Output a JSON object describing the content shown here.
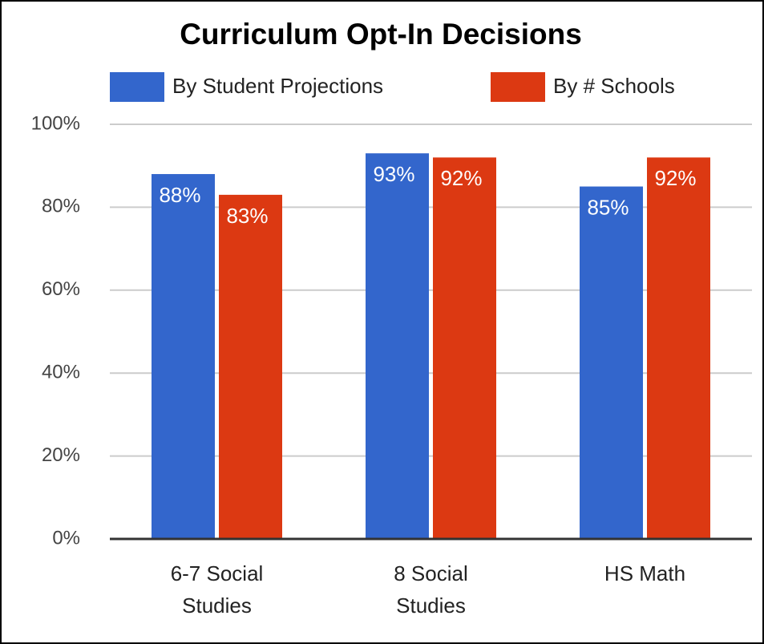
{
  "chart_data": {
    "type": "bar",
    "title": "Curriculum Opt-In Decisions",
    "categories": [
      "6-7 Social Studies",
      "8 Social Studies",
      "HS Math"
    ],
    "series": [
      {
        "name": "By Student Projections",
        "color": "#3366cc",
        "values": [
          88,
          93,
          85
        ],
        "value_labels": [
          "88%",
          "93%",
          "85%"
        ]
      },
      {
        "name": "By # Schools",
        "color": "#dc3912",
        "values": [
          83,
          92,
          92
        ],
        "value_labels": [
          "83%",
          "92%",
          "92%"
        ]
      }
    ],
    "ylim": [
      0,
      100
    ],
    "yticks": [
      {
        "value": 0,
        "label": "0%"
      },
      {
        "value": 20,
        "label": "20%"
      },
      {
        "value": 40,
        "label": "40%"
      },
      {
        "value": 60,
        "label": "60%"
      },
      {
        "value": 80,
        "label": "80%"
      },
      {
        "value": 100,
        "label": "100%"
      }
    ],
    "grid": true,
    "legend": "top"
  }
}
